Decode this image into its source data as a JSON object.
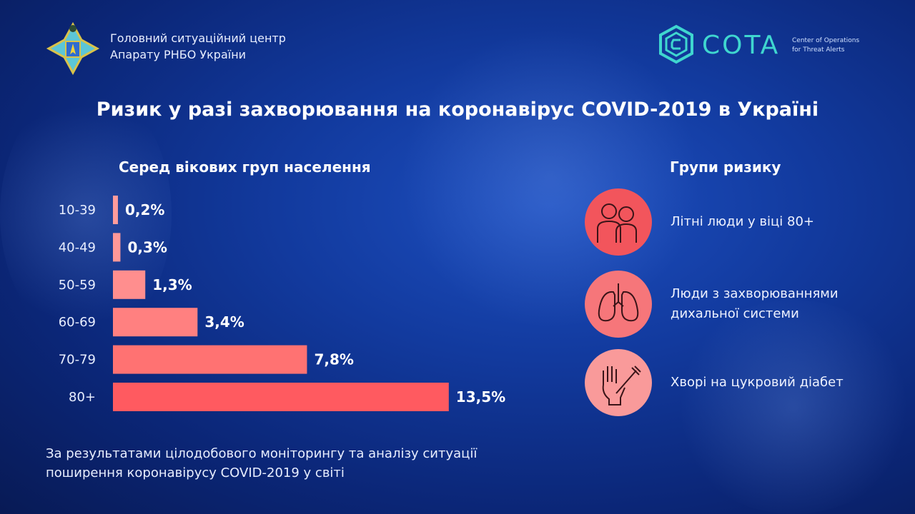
{
  "header": {
    "org_line1": "Головний ситуаційний центр",
    "org_line2": "Апарату РНБО України",
    "cota_name": "COTA",
    "cota_sub1": "Center of Operations",
    "cota_sub2": "for Threat Alerts"
  },
  "title": "Ризик у разі захворювання на коронавірус  COVID-2019 в Україні",
  "chart_data": {
    "type": "bar",
    "orientation": "horizontal",
    "title": "Серед вікових груп населення",
    "categories": [
      "10-39",
      "40-49",
      "50-59",
      "60-69",
      "70-79",
      "80+"
    ],
    "values": [
      0.2,
      0.3,
      1.3,
      3.4,
      7.8,
      13.5
    ],
    "value_labels": [
      "0,2%",
      "0,3%",
      "1,3%",
      "3,4%",
      "7,8%",
      "13,5%"
    ],
    "unit": "%",
    "grid": false,
    "colors": [
      "#ff9c9c",
      "#ff9898",
      "#ff8e8e",
      "#ff8080",
      "#ff7272",
      "#ff5a60"
    ]
  },
  "risk_groups": {
    "title": "Групи ризику",
    "items": [
      {
        "icon": "elderly-people-icon",
        "text": "Літні люди у віці 80+",
        "color": "#f2555c"
      },
      {
        "icon": "lungs-icon",
        "text": "Люди з захворюваннями дихальної системи",
        "color": "#f6767a"
      },
      {
        "icon": "hand-syringe-icon",
        "text": "Хворі на цукровий діабет",
        "color": "#f99a9a"
      }
    ]
  },
  "footer": {
    "line1": "За результатами цілодобового моніторингу та аналізу ситуації",
    "line2": "поширення коронавірусу COVID-2019 у світі"
  }
}
